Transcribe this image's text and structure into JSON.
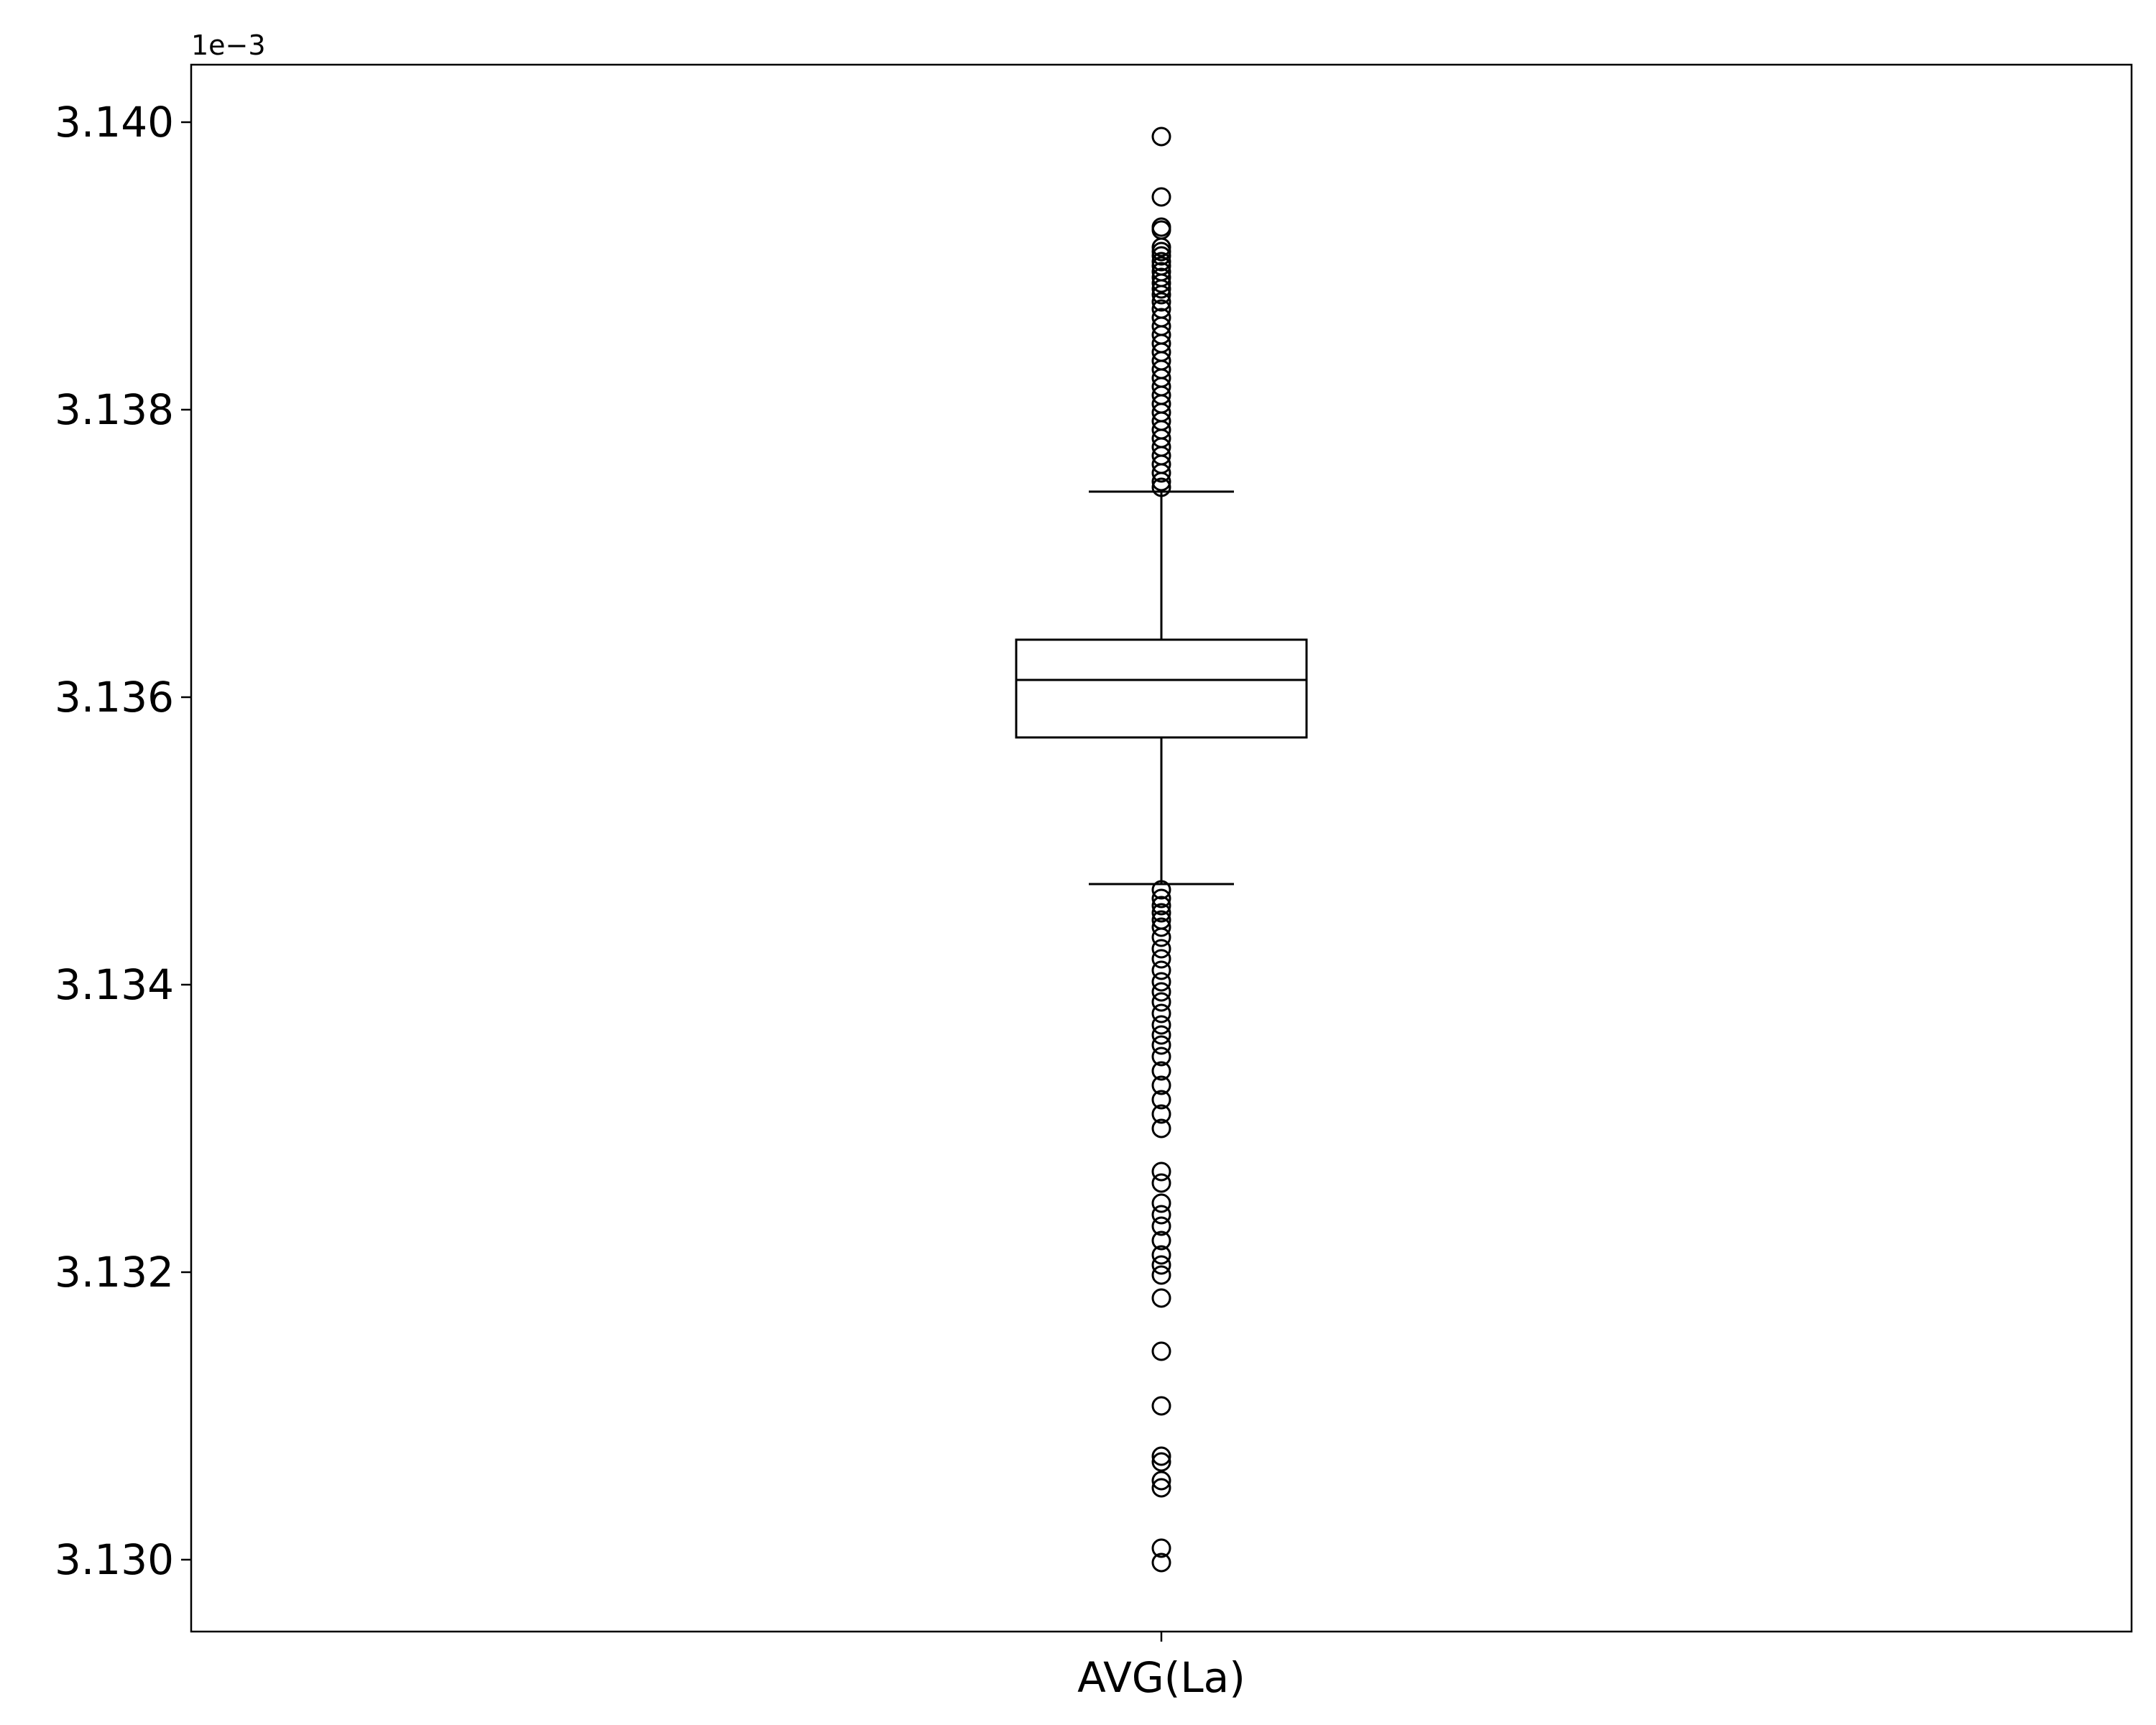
{
  "chart_data": {
    "type": "box",
    "categories": [
      "AVG(La)"
    ],
    "y_offset_label": "1e−3",
    "ylim": [
      3.1295,
      3.1404
    ],
    "yticks": [
      3.13,
      3.132,
      3.134,
      3.136,
      3.138,
      3.14
    ],
    "ytick_labels": [
      "3.130",
      "3.132",
      "3.134",
      "3.136",
      "3.138",
      "3.140"
    ],
    "grid": false,
    "box": {
      "whisker_low": 3.1347,
      "q1": 3.13572,
      "median": 3.13612,
      "q3": 3.1364,
      "whisker_high": 3.13743
    },
    "outliers": [
      3.1399,
      3.13948,
      3.13927,
      3.13925,
      3.13913,
      3.1391,
      3.13907,
      3.13903,
      3.139,
      3.13896,
      3.13892,
      3.13888,
      3.13884,
      3.1388,
      3.13875,
      3.1387,
      3.13864,
      3.13858,
      3.13852,
      3.13846,
      3.1384,
      3.13834,
      3.13828,
      3.13822,
      3.13816,
      3.1381,
      3.13804,
      3.13798,
      3.13792,
      3.13786,
      3.1378,
      3.13774,
      3.13768,
      3.13762,
      3.13756,
      3.1375,
      3.13746,
      3.13466,
      3.1346,
      3.13455,
      3.1345,
      3.13445,
      3.1344,
      3.13433,
      3.13425,
      3.13418,
      3.1341,
      3.13402,
      3.13395,
      3.13388,
      3.1338,
      3.13372,
      3.13365,
      3.13358,
      3.1335,
      3.1334,
      3.1333,
      3.1332,
      3.1331,
      3.133,
      3.1327,
      3.13262,
      3.13248,
      3.1324,
      3.13232,
      3.13222,
      3.13212,
      3.13205,
      3.13198,
      3.13182,
      3.13145,
      3.13107,
      3.13072,
      3.13068,
      3.13055,
      3.1305,
      3.13008,
      3.12998
    ]
  }
}
